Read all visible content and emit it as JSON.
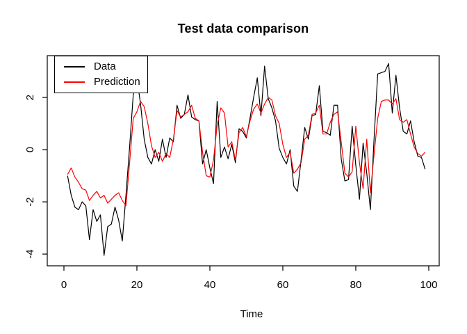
{
  "chart_data": {
    "type": "line",
    "title": "Test data comparison",
    "xlabel": "Time",
    "ylabel": "",
    "grid": false,
    "legend_position": "top-left",
    "x_start": 1,
    "x_step": 1,
    "xlim": [
      -4.57,
      102.86
    ],
    "ylim": [
      -4.45,
      3.6
    ],
    "x_ticks": [
      0,
      20,
      40,
      60,
      80,
      100
    ],
    "y_ticks": [
      -4,
      -2,
      0,
      2
    ],
    "axis_color": "#000000",
    "series": [
      {
        "name": "Data",
        "color": "#000000",
        "values": [
          -1.0,
          -1.75,
          -2.2,
          -2.3,
          -2.0,
          -2.15,
          -3.45,
          -2.3,
          -2.75,
          -2.5,
          -4.05,
          -2.95,
          -2.85,
          -2.2,
          -2.7,
          -3.5,
          -1.75,
          0.1,
          2.1,
          2.75,
          1.75,
          0.4,
          -0.3,
          -0.55,
          0.0,
          -0.45,
          0.4,
          -0.3,
          0.45,
          0.3,
          1.7,
          1.2,
          1.35,
          2.1,
          1.25,
          1.15,
          1.1,
          -0.55,
          0.0,
          -0.7,
          -1.3,
          1.85,
          -0.3,
          0.1,
          -0.35,
          0.2,
          -0.5,
          0.8,
          0.7,
          0.45,
          1.2,
          2.0,
          2.75,
          1.3,
          3.2,
          1.95,
          1.6,
          1.1,
          0.05,
          -0.3,
          -0.55,
          0.0,
          -1.4,
          -1.6,
          -0.4,
          0.85,
          0.4,
          1.3,
          1.35,
          2.45,
          0.7,
          0.65,
          0.55,
          1.7,
          1.7,
          -0.35,
          -1.2,
          -1.15,
          0.9,
          -0.6,
          -1.9,
          0.25,
          -0.9,
          -2.3,
          0.4,
          2.9,
          2.95,
          3.0,
          3.3,
          1.4,
          2.85,
          1.6,
          0.7,
          0.6,
          1.1,
          0.3,
          -0.25,
          -0.3,
          -0.75
        ]
      },
      {
        "name": "Prediction",
        "color": "#FF0000",
        "values": [
          -0.95,
          -0.7,
          -1.05,
          -1.25,
          -1.5,
          -1.55,
          -1.95,
          -1.75,
          -1.6,
          -1.85,
          -1.75,
          -2.05,
          -1.9,
          -1.75,
          -1.65,
          -1.95,
          -2.15,
          -0.5,
          1.2,
          1.45,
          1.85,
          1.65,
          1.0,
          0.15,
          -0.3,
          -0.1,
          -0.45,
          -0.15,
          -0.3,
          0.4,
          1.5,
          1.25,
          1.35,
          1.45,
          1.7,
          1.2,
          1.1,
          -0.1,
          -1.0,
          -1.05,
          -0.4,
          0.95,
          1.6,
          1.4,
          0.1,
          0.3,
          -0.4,
          0.65,
          0.85,
          0.5,
          1.1,
          1.55,
          1.75,
          1.4,
          1.75,
          2.0,
          1.9,
          1.3,
          1.0,
          0.2,
          -0.3,
          -0.1,
          -0.9,
          -0.75,
          -0.5,
          0.4,
          0.55,
          1.35,
          1.4,
          1.7,
          0.6,
          0.6,
          1.05,
          1.35,
          1.45,
          0.3,
          -0.9,
          -1.05,
          -0.85,
          0.9,
          -0.5,
          -1.5,
          0.4,
          -1.65,
          -0.2,
          1.2,
          1.85,
          1.9,
          1.9,
          1.75,
          1.95,
          1.15,
          1.05,
          1.15,
          0.6,
          0.1,
          -0.15,
          -0.25,
          -0.1
        ]
      }
    ]
  }
}
